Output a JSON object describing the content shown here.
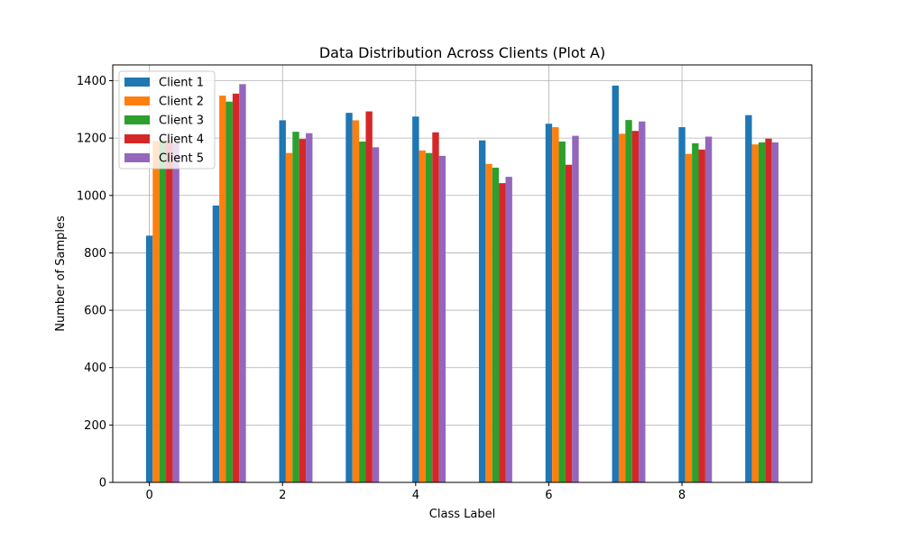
{
  "chart_data": {
    "type": "bar",
    "title": "Data Distribution Across Clients (Plot A)",
    "xlabel": "Class Label",
    "ylabel": "Number of Samples",
    "categories": [
      0,
      1,
      2,
      3,
      4,
      5,
      6,
      7,
      8,
      9
    ],
    "xticks": [
      0,
      2,
      4,
      6,
      8
    ],
    "yticks": [
      0,
      200,
      400,
      600,
      800,
      1000,
      1200,
      1400
    ],
    "xlim": [
      -0.55,
      9.95
    ],
    "ylim": [
      0,
      1455
    ],
    "grid": true,
    "legend_position": "upper-left",
    "series": [
      {
        "name": "Client 1",
        "color": "#1f77b4",
        "values": [
          860,
          965,
          1262,
          1288,
          1275,
          1192,
          1250,
          1383,
          1238,
          1280
        ]
      },
      {
        "name": "Client 2",
        "color": "#ff7f0e",
        "values": [
          1190,
          1348,
          1148,
          1262,
          1157,
          1110,
          1238,
          1215,
          1145,
          1178
        ]
      },
      {
        "name": "Client 3",
        "color": "#2ca02c",
        "values": [
          1195,
          1327,
          1222,
          1188,
          1148,
          1097,
          1188,
          1263,
          1182,
          1185
        ]
      },
      {
        "name": "Client 4",
        "color": "#d62728",
        "values": [
          1190,
          1355,
          1197,
          1293,
          1220,
          1043,
          1107,
          1225,
          1160,
          1198
        ]
      },
      {
        "name": "Client 5",
        "color": "#9467bd",
        "values": [
          1182,
          1388,
          1217,
          1168,
          1138,
          1065,
          1208,
          1258,
          1205,
          1185
        ]
      }
    ]
  }
}
